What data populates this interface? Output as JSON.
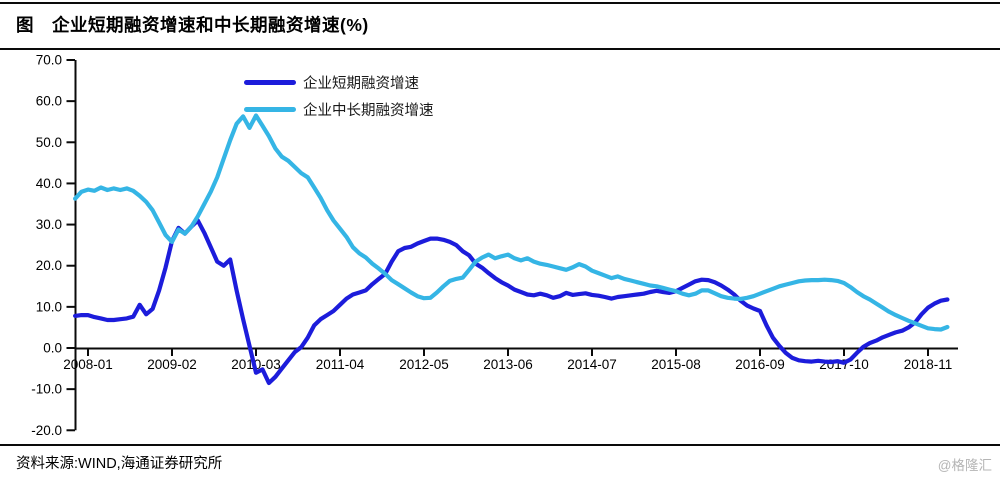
{
  "page": {
    "title": "图　企业短期融资增速和中长期融资增速(%)",
    "source_note": "资料来源:WIND,海通证券研究所",
    "watermark": "@格隆汇"
  },
  "chart_data": {
    "type": "line",
    "title": "企业短期融资增速和中长期融资增速(%)",
    "grid": false,
    "legend_position": "top-center",
    "ylim": [
      -20,
      70
    ],
    "y_ticks": [
      70,
      60,
      50,
      40,
      30,
      20,
      10,
      0,
      -10,
      -20
    ],
    "x_start_month": "2007-11",
    "x_tick_labels": [
      "2008-01",
      "2009-02",
      "2010-03",
      "2011-04",
      "2012-05",
      "2013-06",
      "2014-07",
      "2015-08",
      "2016-09",
      "2017-10",
      "2018-11"
    ],
    "x_tick_indices": [
      2,
      15,
      28,
      41,
      54,
      67,
      80,
      93,
      106,
      119,
      132
    ],
    "series": [
      {
        "name": "企业短期融资增速",
        "color": "#1c1cdb",
        "values": [
          7.8,
          8.0,
          8.0,
          7.5,
          7.2,
          6.8,
          6.8,
          7.0,
          7.2,
          7.6,
          10.5,
          8.2,
          9.5,
          14.0,
          19.5,
          26.0,
          29.2,
          27.8,
          29.5,
          31.0,
          28.0,
          24.5,
          21.0,
          20.0,
          21.5,
          14.0,
          7.0,
          0.5,
          -6.0,
          -5.2,
          -8.5,
          -7.0,
          -5.0,
          -3.0,
          -1.0,
          0.2,
          2.5,
          5.5,
          7.0,
          8.0,
          9.0,
          10.5,
          12.0,
          13.0,
          13.5,
          14.0,
          15.5,
          16.8,
          18.0,
          21.0,
          23.5,
          24.3,
          24.6,
          25.4,
          26.0,
          26.6,
          26.6,
          26.3,
          25.8,
          25.0,
          23.5,
          22.5,
          20.5,
          19.5,
          18.2,
          17.0,
          16.0,
          15.2,
          14.2,
          13.6,
          13.0,
          12.8,
          13.2,
          12.8,
          12.2,
          12.6,
          13.4,
          12.9,
          13.1,
          13.3,
          12.9,
          12.7,
          12.4,
          12.0,
          12.4,
          12.6,
          12.8,
          13.0,
          13.2,
          13.6,
          13.9,
          13.6,
          13.4,
          13.8,
          14.6,
          15.4,
          16.2,
          16.6,
          16.5,
          16.0,
          15.2,
          14.2,
          13.0,
          11.5,
          10.3,
          9.6,
          9.0,
          5.5,
          2.5,
          0.5,
          -1.2,
          -2.4,
          -3.0,
          -3.2,
          -3.3,
          -3.1,
          -3.3,
          -3.4,
          -3.2,
          -3.6,
          -2.8,
          -1.2,
          0.3,
          1.2,
          1.8,
          2.6,
          3.2,
          3.8,
          4.2,
          5.0,
          6.2,
          8.2,
          9.8,
          10.8,
          11.5,
          11.8
        ]
      },
      {
        "name": "企业中长期融资增速",
        "color": "#35b5e5",
        "values": [
          36.3,
          38.0,
          38.5,
          38.2,
          39.0,
          38.4,
          38.8,
          38.4,
          38.8,
          38.2,
          37.0,
          35.5,
          33.5,
          30.5,
          27.5,
          25.8,
          28.8,
          27.8,
          29.5,
          32.0,
          35.0,
          38.0,
          41.5,
          46.0,
          50.5,
          54.5,
          56.3,
          53.5,
          56.5,
          54.0,
          51.5,
          48.5,
          46.5,
          45.5,
          44.0,
          42.5,
          41.5,
          39.0,
          36.5,
          33.5,
          31.0,
          29.0,
          27.0,
          24.5,
          23.0,
          22.0,
          20.5,
          19.3,
          18.0,
          16.5,
          15.5,
          14.5,
          13.5,
          12.6,
          12.1,
          12.2,
          13.5,
          15.0,
          16.3,
          16.8,
          17.1,
          19.0,
          21.0,
          22.0,
          22.7,
          21.8,
          22.3,
          22.7,
          21.8,
          21.3,
          21.8,
          21.0,
          20.5,
          20.2,
          19.8,
          19.4,
          19.0,
          19.6,
          20.4,
          19.8,
          18.8,
          18.2,
          17.6,
          17.0,
          17.4,
          16.8,
          16.4,
          16.0,
          15.6,
          15.2,
          15.0,
          14.6,
          14.2,
          13.8,
          13.2,
          12.8,
          13.2,
          14.0,
          14.0,
          13.3,
          12.6,
          12.2,
          12.0,
          11.9,
          12.2,
          12.6,
          13.2,
          13.8,
          14.4,
          15.0,
          15.4,
          15.8,
          16.2,
          16.4,
          16.5,
          16.5,
          16.6,
          16.5,
          16.3,
          15.8,
          14.8,
          13.6,
          12.6,
          11.8,
          10.8,
          9.8,
          8.8,
          8.0,
          7.3,
          6.6,
          6.0,
          5.4,
          4.8,
          4.6,
          4.5,
          5.1
        ]
      }
    ]
  }
}
